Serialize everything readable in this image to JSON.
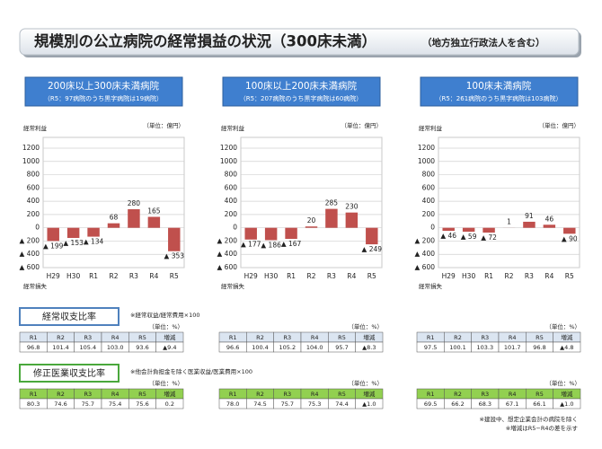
{
  "title": "規模別の公立病院の経常損益の状況（300床未満）",
  "title_note": "（地方独立行政法人を含む）",
  "chart_data": [
    {
      "type": "bar",
      "title": "200床以上300床未満病院",
      "subtitle": "（R5：97病院のうち黒字病院は19病院）",
      "y_label": "経常利益",
      "y_label_bottom": "経常損失",
      "unit": "（単位：億円）",
      "categories": [
        "H29",
        "H30",
        "R1",
        "R2",
        "R3",
        "R4",
        "R5"
      ],
      "values": [
        -199,
        -153,
        -134,
        68,
        280,
        165,
        -353
      ],
      "value_labels": [
        "▲ 199",
        "▲ 153",
        "▲ 134",
        "68",
        "280",
        "165",
        "▲ 353"
      ],
      "color": "#c0504d",
      "ylim": [
        -600,
        1200
      ],
      "yticks": [
        {
          "value": -600,
          "label": "▲ 600"
        },
        {
          "value": -400,
          "label": "▲ 400"
        },
        {
          "value": -200,
          "label": "▲ 200"
        },
        0,
        200,
        400,
        600,
        800,
        1000,
        1200
      ],
      "grid": true
    },
    {
      "type": "bar",
      "title": "100床以上200床未満病院",
      "subtitle": "（R5：207病院のうち黒字病院は60病院）",
      "y_label": "経常利益",
      "y_label_bottom": "経常損失",
      "unit": "（単位：億円）",
      "categories": [
        "H29",
        "H30",
        "R1",
        "R2",
        "R3",
        "R4",
        "R5"
      ],
      "values": [
        -177,
        -186,
        -167,
        20,
        285,
        230,
        -249
      ],
      "value_labels": [
        "▲ 177",
        "▲ 186",
        "▲ 167",
        "20",
        "285",
        "230",
        "▲ 249"
      ],
      "color": "#c0504d",
      "ylim": [
        -600,
        1200
      ],
      "yticks": [
        {
          "value": -600,
          "label": "▲ 600"
        },
        {
          "value": -400,
          "label": "▲ 400"
        },
        {
          "value": -200,
          "label": "▲ 200"
        },
        0,
        200,
        400,
        600,
        800,
        1000,
        1200
      ],
      "grid": true
    },
    {
      "type": "bar",
      "title": "100床未満病院",
      "subtitle": "（R5：261病院のうち黒字病院は103病院）",
      "y_label": "経常利益",
      "y_label_bottom": "経常損失",
      "unit": "（単位：億円）",
      "categories": [
        "H29",
        "H30",
        "R1",
        "R2",
        "R3",
        "R4",
        "R5"
      ],
      "values": [
        -46,
        -59,
        -72,
        1,
        91,
        46,
        -90
      ],
      "value_labels": [
        "▲ 46",
        "▲ 59",
        "▲ 72",
        "1",
        "91",
        "46",
        "▲ 90"
      ],
      "color": "#c0504d",
      "ylim": [
        -600,
        1200
      ],
      "yticks": [
        {
          "value": -600,
          "label": "▲ 600"
        },
        {
          "value": -400,
          "label": "▲ 400"
        },
        {
          "value": -200,
          "label": "▲ 200"
        },
        0,
        200,
        400,
        600,
        800,
        1000,
        1200
      ],
      "grid": true
    }
  ],
  "tables": [
    {
      "title": "経常収支比率",
      "note": "※経常収益/経常費用×100",
      "unit": "（単位：%）",
      "columns": [
        "R1",
        "R2",
        "R3",
        "R4",
        "R5",
        "増減"
      ],
      "rows": [
        [
          "96.8",
          "101.4",
          "105.4",
          "103.0",
          "93.6",
          "▲9.4"
        ],
        [
          "96.6",
          "100.4",
          "105.2",
          "104.0",
          "95.7",
          "▲8.3"
        ],
        [
          "97.5",
          "100.1",
          "103.3",
          "101.7",
          "96.8",
          "▲4.8"
        ]
      ],
      "header_color": "#dbe5f1",
      "box_color": "#4f81bd"
    },
    {
      "title": "修正医業収支比率",
      "note": "※他会計負担金を除く医業収益/医業費用×100",
      "unit": "（単位：%）",
      "columns": [
        "R1",
        "R2",
        "R3",
        "R4",
        "R5",
        "増減"
      ],
      "rows": [
        [
          "80.3",
          "74.6",
          "75.7",
          "75.4",
          "75.6",
          "0.2"
        ],
        [
          "78.0",
          "74.5",
          "75.7",
          "75.3",
          "74.4",
          "▲1.0"
        ],
        [
          "69.5",
          "66.2",
          "68.3",
          "67.1",
          "66.1",
          "▲1.0"
        ]
      ],
      "header_color": "#92d050",
      "box_color": "#4aa83c"
    }
  ],
  "footnotes": [
    "※建設中、想定企業会計の病院を除く",
    "※増減はR5−R4の差を示す"
  ]
}
